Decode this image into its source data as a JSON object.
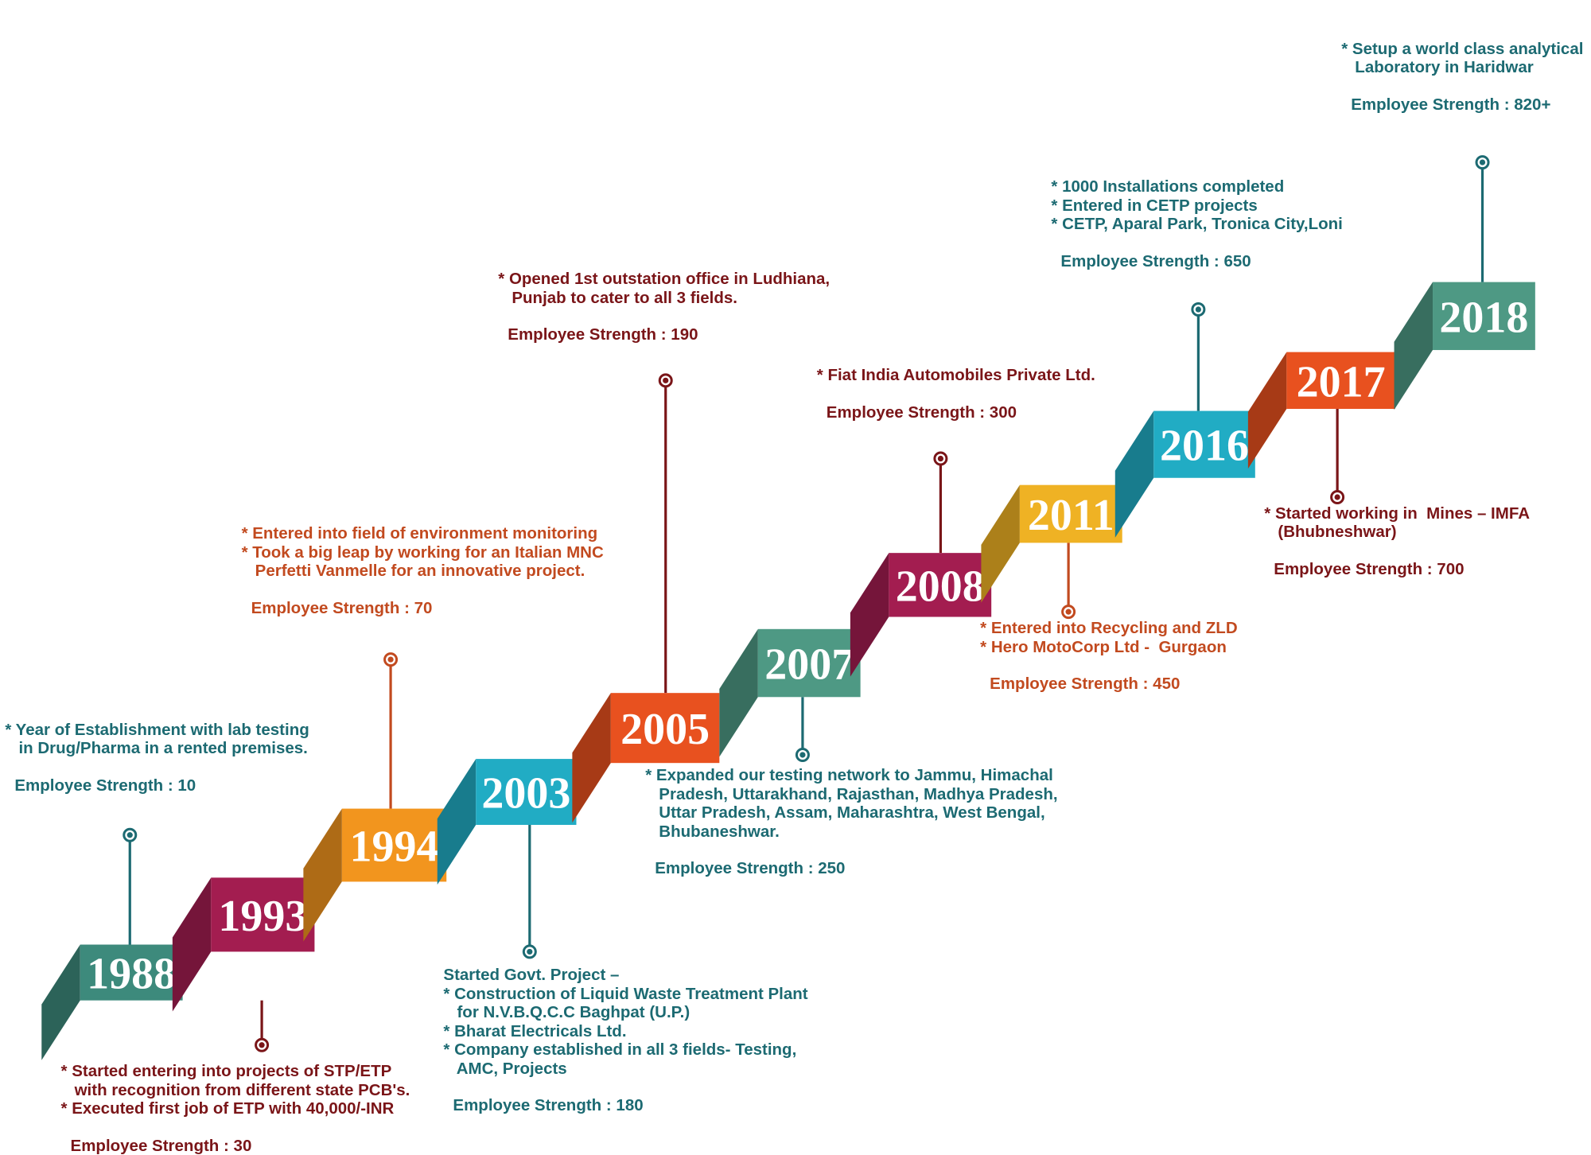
{
  "milestones": [
    {
      "year": "1988",
      "color": "#3d8a7c",
      "text_color": "#1c6a72",
      "notes": "* Year of Establishment with lab testing\n   in Drug/Pharma in a rented premises.",
      "strength": "Employee Strength : 10"
    },
    {
      "year": "1993",
      "color": "#a31d50",
      "text_color": "#7a1518",
      "notes": "* Started entering into projects of STP/ETP\n   with recognition from different state PCB's.\n* Executed first job of ETP with 40,000/-INR",
      "strength": "Employee Strength : 30"
    },
    {
      "year": "1994",
      "color": "#f2951e",
      "text_color": "#c24a1f",
      "notes": "* Entered into field of environment monitoring\n* Took a big leap by working for an Italian MNC\n   Perfetti Vanmelle for an innovative project.",
      "strength": "Employee Strength : 70"
    },
    {
      "year": "2003",
      "color": "#21acc4",
      "text_color": "#1c6a72",
      "notes": "Started Govt. Project –\n* Construction of Liquid Waste Treatment Plant\n   for N.V.B.Q.C.C Baghpat (U.P.)\n* Bharat Electricals Ltd.\n* Company established in all 3 fields- Testing,\n   AMC, Projects",
      "strength": "Employee Strength : 180"
    },
    {
      "year": "2005",
      "color": "#e8511f",
      "text_color": "#7a1518",
      "notes": "* Opened 1st outstation office in Ludhiana,\n   Punjab to cater to all 3 fields.",
      "strength": "Employee Strength : 190"
    },
    {
      "year": "2007",
      "color": "#4e9984",
      "text_color": "#1c6a72",
      "notes": "* Expanded our testing network to Jammu, Himachal\n   Pradesh, Uttarakhand, Rajasthan, Madhya Pradesh,\n   Uttar Pradesh, Assam, Maharashtra, West Bengal,\n   Bhubaneshwar.",
      "strength": "Employee Strength : 250"
    },
    {
      "year": "2008",
      "color": "#a31d50",
      "text_color": "#7a1518",
      "notes": "* Fiat India Automobiles Private Ltd.",
      "strength": "Employee Strength : 300"
    },
    {
      "year": "2011",
      "color": "#efb224",
      "text_color": "#c24a1f",
      "notes": "* Entered into Recycling and ZLD\n* Hero MotoCorp Ltd -  Gurgaon",
      "strength": "Employee Strength : 450"
    },
    {
      "year": "2016",
      "color": "#21acc4",
      "text_color": "#1c6a72",
      "notes": "* 1000 Installations completed\n* Entered in CETP projects\n* CETP, Aparal Park, Tronica City,Loni",
      "strength": "Employee Strength : 650"
    },
    {
      "year": "2017",
      "color": "#e8511f",
      "text_color": "#7a1518",
      "notes": "* Started working in  Mines – IMFA\n   (Bhubneshwar)",
      "strength": "Employee Strength : 700"
    },
    {
      "year": "2018",
      "color": "#4e9984",
      "text_color": "#1c6a72",
      "notes": "* Setup a world class analytical\n   Laboratory in Haridwar",
      "strength": "Employee Strength : 820+"
    }
  ]
}
